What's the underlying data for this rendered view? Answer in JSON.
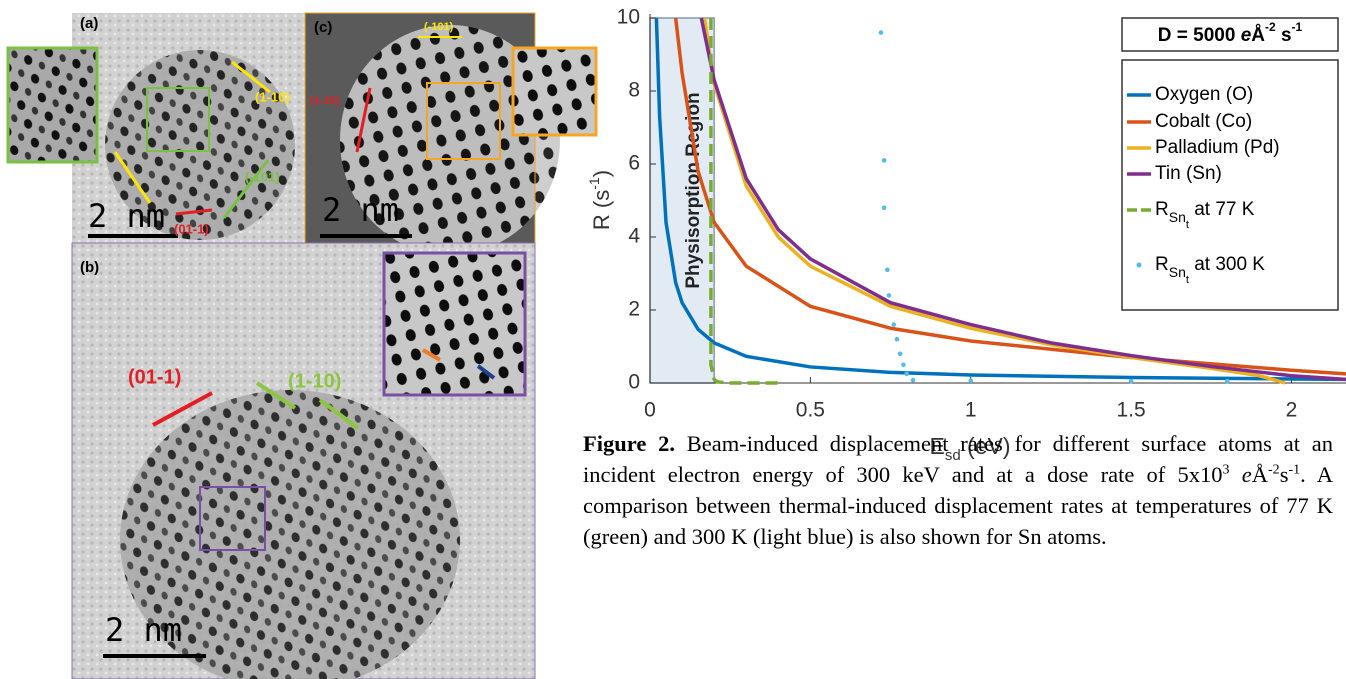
{
  "panels": [
    {
      "label": "(a)",
      "scale_bar": "2 nm",
      "annotations": [
        "(1-10)",
        "(-101)",
        "(01-1)"
      ]
    },
    {
      "label": "(c)",
      "scale_bar": "2 nm",
      "annotations": [
        "(-101)",
        "(1-10)"
      ]
    },
    {
      "label": "(b)",
      "scale_bar": "2 nm",
      "annotations": [
        "(01-1)",
        "(1-10)"
      ]
    }
  ],
  "chart_data": {
    "type": "line",
    "xlabel": {
      "text": "E",
      "sub": "sd",
      "rest": " (eV)"
    },
    "ylabel": {
      "text": "R (s",
      "sup": "-1",
      "rest": ")"
    },
    "legend_title": {
      "text": "D = 5000 ",
      "e": "e",
      "unit": "Å",
      "exp1": "-2",
      "unit2": " s",
      "exp2": "-1"
    },
    "region": {
      "label": "Physisorption Region",
      "x": [
        0,
        0.2
      ]
    },
    "xlim": [
      0,
      2.17
    ],
    "ylim": [
      0,
      10
    ],
    "xticks": [
      0,
      0.5,
      1,
      1.5,
      2
    ],
    "yticks": [
      0,
      2,
      4,
      6,
      8,
      10
    ],
    "series": [
      {
        "name": "Oxygen (O)",
        "color": "#0072bd",
        "style": "line",
        "x": [
          0.02,
          0.03,
          0.05,
          0.08,
          0.1,
          0.15,
          0.2,
          0.3,
          0.5,
          0.75,
          1,
          1.5,
          2,
          2.17
        ],
        "values": [
          10,
          7.3,
          4.4,
          2.75,
          2.2,
          1.47,
          1.1,
          0.73,
          0.44,
          0.29,
          0.22,
          0.15,
          0.11,
          0.1
        ]
      },
      {
        "name": "Cobalt (Co)",
        "color": "#d95319",
        "style": "line",
        "x": [
          0.08,
          0.1,
          0.15,
          0.2,
          0.3,
          0.5,
          0.75,
          1,
          1.5,
          2,
          2.17
        ],
        "values": [
          10,
          8.5,
          5.8,
          4.4,
          3.2,
          2.1,
          1.5,
          1.15,
          0.7,
          0.35,
          0.25
        ]
      },
      {
        "name": "Palladium (Pd)",
        "color": "#edb120",
        "style": "line",
        "x": [
          0.17,
          0.2,
          0.3,
          0.4,
          0.5,
          0.75,
          1,
          1.25,
          1.5,
          1.75,
          1.9,
          1.98
        ],
        "values": [
          10,
          8.2,
          5.4,
          4,
          3.2,
          2.1,
          1.5,
          1.05,
          0.7,
          0.4,
          0.2,
          0
        ]
      },
      {
        "name": "Tin (Sn)",
        "color": "#7e2f8e",
        "style": "line",
        "x": [
          0.16,
          0.2,
          0.3,
          0.4,
          0.5,
          0.75,
          1,
          1.25,
          1.5,
          1.75,
          2,
          2.17
        ],
        "values": [
          10,
          8.3,
          5.6,
          4.2,
          3.4,
          2.2,
          1.6,
          1.1,
          0.75,
          0.45,
          0.2,
          0.1
        ]
      },
      {
        "name": "R",
        "name_sub": "Sn",
        "name_subsub": "t",
        "name_rest": " at 77 K",
        "color": "#77ac30",
        "style": "dashed",
        "x": [
          0.19,
          0.19,
          0.2,
          0.21,
          0.25,
          0.3,
          0.4
        ],
        "values": [
          10,
          0.5,
          0.1,
          0.03,
          0,
          0,
          0
        ]
      },
      {
        "name": "R",
        "name_sub": "Sn",
        "name_subsub": "t",
        "name_rest": " at 300 K",
        "color": "#4dbeee",
        "style": "dots",
        "x": [
          0.72,
          0.73,
          0.73,
          0.74,
          0.745,
          0.76,
          0.77,
          0.78,
          0.79,
          0.8,
          0.82,
          1,
          1.5,
          1.8
        ],
        "values": [
          9.6,
          6.1,
          4.8,
          3.1,
          2.4,
          1.6,
          1.2,
          0.8,
          0.5,
          0.25,
          0.08,
          0.06,
          0.05,
          0.05
        ]
      }
    ]
  },
  "caption": {
    "label": "Figure 2.",
    "text_before": " Beam-induced displacement rates for different surface atoms at an incident electron energy of 300 keV and at a dose rate of 5x10",
    "sup1": "3",
    "e": "e",
    "unit": "Å",
    "sup2": "-2",
    "unit2": "s",
    "sup3": "-1",
    "text_after": ". A comparison between thermal-induced displacement rates at temperatures of 77 K (green) and 300 K (light blue) is also shown for Sn atoms."
  }
}
